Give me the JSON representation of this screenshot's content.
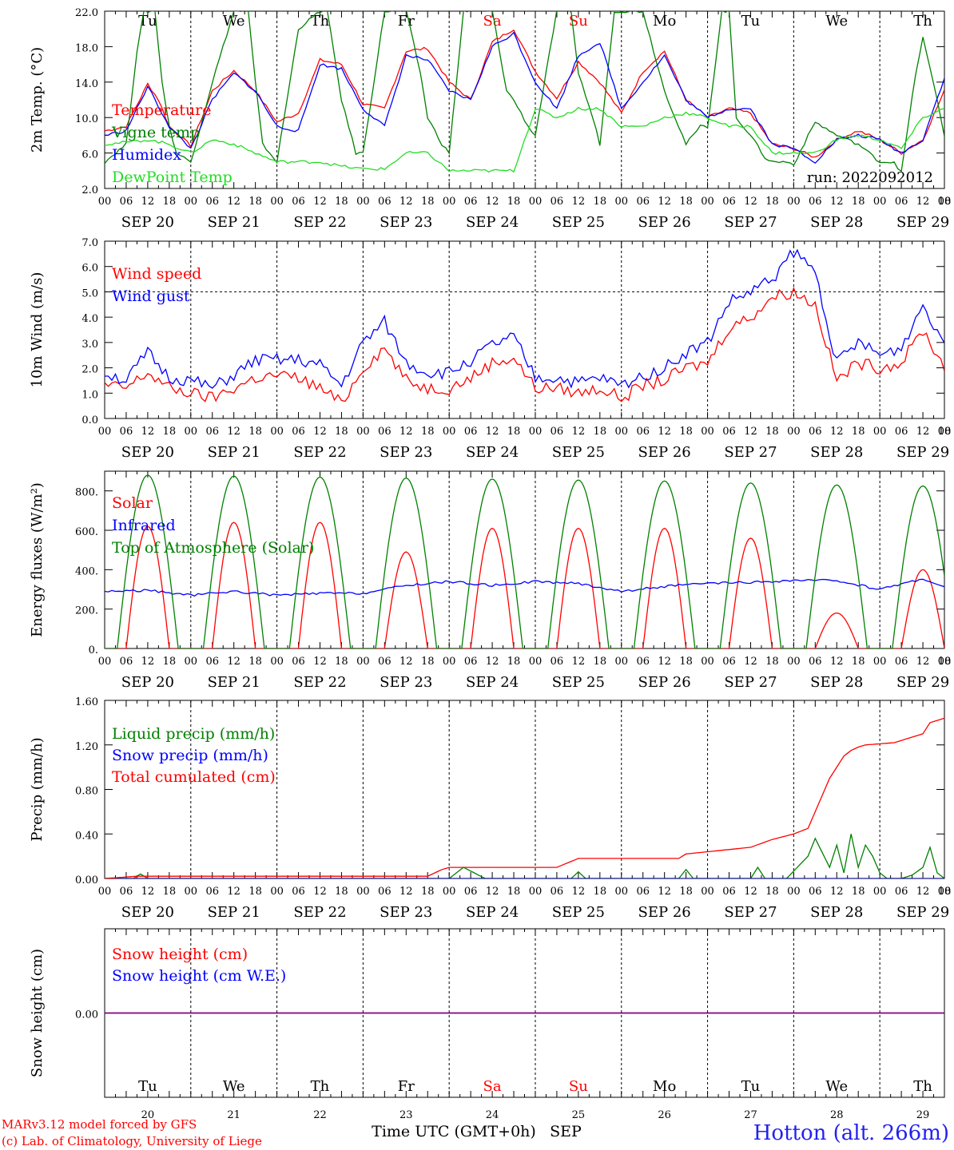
{
  "days": [
    "Tu",
    "We",
    "Th",
    "Fr",
    "Sa",
    "Su",
    "Mo",
    "Tu",
    "We",
    "Th"
  ],
  "day_colors": [
    "#000000",
    "#000000",
    "#000000",
    "#000000",
    "#ff0000",
    "#ff0000",
    "#000000",
    "#000000",
    "#000000",
    "#000000"
  ],
  "dates": [
    "SEP 20",
    "SEP 21",
    "SEP 22",
    "SEP 23",
    "SEP 24",
    "SEP 25",
    "SEP 26",
    "SEP 27",
    "SEP 28",
    "SEP 29"
  ],
  "day_numbers": [
    "20",
    "21",
    "22",
    "23",
    "24",
    "25",
    "26",
    "27",
    "28",
    "29"
  ],
  "hour_ticks": [
    "00",
    "06",
    "12",
    "18"
  ],
  "x_axis_title": "Time UTC (GMT+0h)",
  "x_axis_month": "SEP",
  "run_label": "run: 2022092012",
  "credits": {
    "line1": "MARv3.12 model forced by GFS",
    "line2": "(c) Lab. of Climatology, University of Liege"
  },
  "station": "Hotton (alt. 266m)",
  "colors": {
    "red": "#ff0000",
    "green": "#008000",
    "blue": "#0000ff",
    "lightgreen": "#22dd22",
    "purple": "#800080",
    "station": "#2222ee"
  },
  "chart_data": [
    {
      "type": "line",
      "ylabel": "2m Temp. (°C)",
      "ylim": [
        2.0,
        22.0
      ],
      "yticks": [
        "2.0",
        "6.0",
        "10.0",
        "14.0",
        "18.0",
        "22.0"
      ],
      "show_days": true,
      "x_unit": "hours since SEP 20 00 UTC",
      "series": [
        {
          "name": "Temperature",
          "color": "#ff0000",
          "x": [
            0,
            6,
            12,
            15,
            18,
            24,
            30,
            36,
            42,
            48,
            54,
            60,
            66,
            72,
            78,
            84,
            90,
            96,
            102,
            108,
            114,
            120,
            126,
            132,
            138,
            144,
            150,
            156,
            162,
            168,
            174,
            180,
            186,
            192,
            198,
            204,
            210,
            216,
            222,
            228,
            234
          ],
          "y": [
            8.5,
            9,
            13.8,
            12,
            9,
            6.8,
            13,
            15.3,
            13,
            9.5,
            10.5,
            16.5,
            16,
            11.5,
            11,
            17.5,
            17.8,
            14,
            12,
            18.5,
            20,
            15.2,
            12.2,
            16.3,
            14,
            10.5,
            15.2,
            17.5,
            12,
            10,
            11,
            10.5,
            7,
            6.5,
            5.5,
            7.5,
            8.5,
            7.5,
            6,
            7.5,
            13
          ]
        },
        {
          "name": "Vigne temp",
          "color": "#008000",
          "x": [
            0,
            6,
            9,
            11,
            14,
            16,
            18,
            20,
            24,
            30,
            36,
            40,
            42,
            44,
            48,
            54,
            60,
            62,
            66,
            70,
            72,
            78,
            84,
            88,
            90,
            94,
            96,
            100,
            102,
            108,
            112,
            114,
            118,
            120,
            126,
            130,
            132,
            136,
            138,
            142,
            144,
            150,
            156,
            160,
            162,
            166,
            168,
            172,
            174,
            176,
            180,
            184,
            186,
            190,
            192,
            198,
            204,
            210,
            216,
            220,
            222,
            226,
            228,
            232,
            234
          ],
          "y": [
            5,
            7,
            17.5,
            22,
            22,
            14,
            9,
            6,
            5,
            14,
            22,
            22,
            14,
            7,
            5,
            20,
            22,
            22,
            12,
            6,
            6,
            22,
            22,
            15,
            10,
            7,
            6,
            22,
            22,
            22,
            13,
            12,
            9,
            8,
            22,
            22,
            15,
            10,
            7,
            22,
            22,
            22,
            13,
            9,
            7,
            9,
            9,
            22,
            22,
            10,
            8,
            5.5,
            5,
            5,
            4.7,
            9.5,
            8,
            7,
            5,
            5,
            3.8,
            15,
            19,
            12,
            8
          ]
        },
        {
          "name": "Humidex",
          "color": "#0000ff",
          "x": [
            0,
            6,
            12,
            18,
            24,
            30,
            36,
            42,
            48,
            54,
            60,
            66,
            72,
            78,
            84,
            90,
            96,
            102,
            108,
            114,
            120,
            126,
            132,
            138,
            144,
            150,
            156,
            162,
            168,
            174,
            180,
            186,
            192,
            198,
            204,
            210,
            216,
            222,
            228,
            234
          ],
          "y": [
            8,
            8.5,
            13.5,
            9,
            6.5,
            12,
            15,
            13,
            9,
            8.5,
            16,
            15.5,
            11,
            9,
            17,
            16.5,
            13,
            12,
            18,
            19.5,
            14,
            11,
            17,
            18.5,
            11,
            14,
            17,
            12,
            10,
            11,
            11,
            7,
            6.5,
            5,
            7.5,
            8,
            7.5,
            6,
            7.5,
            14.5
          ]
        },
        {
          "name": "DewPoint Temp",
          "color": "#22dd22",
          "x": [
            0,
            6,
            12,
            18,
            24,
            30,
            36,
            42,
            48,
            54,
            60,
            66,
            72,
            78,
            84,
            90,
            96,
            102,
            108,
            114,
            120,
            126,
            132,
            138,
            144,
            150,
            156,
            162,
            168,
            174,
            180,
            186,
            192,
            198,
            204,
            210,
            216,
            222,
            228,
            234
          ],
          "y": [
            7,
            7.2,
            7.5,
            7,
            6,
            7.5,
            7,
            6,
            5,
            5,
            5,
            4.5,
            4.2,
            4.2,
            6,
            6,
            4,
            4,
            4,
            4,
            11,
            10,
            11,
            11,
            9,
            9,
            10,
            10.5,
            10,
            9,
            9,
            6,
            6,
            6,
            7.5,
            8,
            7.5,
            6.5,
            10,
            11
          ]
        }
      ]
    },
    {
      "type": "line",
      "ylabel": "10m Wind (m/s)",
      "ylim": [
        0.0,
        7.0
      ],
      "yticks": [
        "0.0",
        "1.0",
        "2.0",
        "3.0",
        "4.0",
        "5.0",
        "6.0",
        "7.0"
      ],
      "hline": 5.0,
      "x_unit": "hours since SEP 20 00 UTC",
      "series": [
        {
          "name": "Wind speed",
          "color": "#ff0000",
          "x": [
            0,
            6,
            12,
            18,
            24,
            30,
            36,
            42,
            48,
            54,
            60,
            66,
            72,
            78,
            84,
            90,
            96,
            102,
            108,
            114,
            120,
            126,
            132,
            138,
            144,
            150,
            156,
            162,
            168,
            174,
            180,
            186,
            192,
            198,
            204,
            210,
            216,
            222,
            228,
            234
          ],
          "y": [
            1.3,
            1.2,
            1.8,
            1.2,
            1,
            0.8,
            1.2,
            1.6,
            1.7,
            1.6,
            1.2,
            0.6,
            2,
            2.8,
            1.5,
            1.2,
            1.2,
            1.6,
            2.2,
            2.4,
            1.2,
            1.2,
            1,
            1.2,
            0.8,
            1.3,
            1.5,
            2,
            2.2,
            3.6,
            4,
            4.8,
            5,
            4.5,
            1.5,
            2.2,
            2,
            2.2,
            3.5,
            2
          ]
        },
        {
          "name": "Wind gust",
          "color": "#0000ff",
          "x": [
            0,
            6,
            12,
            18,
            24,
            30,
            36,
            42,
            48,
            54,
            60,
            66,
            72,
            78,
            84,
            90,
            96,
            102,
            108,
            114,
            120,
            126,
            132,
            138,
            144,
            150,
            156,
            162,
            168,
            174,
            180,
            186,
            192,
            198,
            204,
            210,
            216,
            222,
            228,
            234
          ],
          "y": [
            1.8,
            1.5,
            2.6,
            1.6,
            1.5,
            1.2,
            1.7,
            2.3,
            2.3,
            2.3,
            2.1,
            1.3,
            3,
            3.8,
            2.2,
            1.8,
            1.8,
            2.3,
            2.9,
            3.2,
            1.6,
            1.6,
            1.4,
            1.6,
            1.3,
            1.7,
            2,
            2.6,
            3,
            4.6,
            5,
            5.5,
            6.6,
            5.8,
            2.2,
            3,
            2.5,
            2.8,
            4.5,
            3
          ]
        }
      ]
    },
    {
      "type": "line",
      "ylabel": "Energy fluxes (W/m²)",
      "ylim": [
        0,
        900
      ],
      "yticks": [
        "0.",
        "200.",
        "400.",
        "600.",
        "800."
      ],
      "x_unit": "hours since SEP 20 00 UTC",
      "series": [
        {
          "name": "Solar",
          "color": "#ff0000",
          "daily_peaks": [
            620,
            640,
            640,
            490,
            610,
            610,
            610,
            560,
            180,
            400
          ]
        },
        {
          "name": "Infrared",
          "color": "#0000ff",
          "x": [
            0,
            12,
            24,
            36,
            48,
            60,
            72,
            84,
            96,
            108,
            120,
            132,
            144,
            156,
            168,
            180,
            192,
            204,
            216,
            228,
            234
          ],
          "y": [
            290,
            295,
            270,
            290,
            270,
            280,
            280,
            320,
            340,
            320,
            340,
            330,
            290,
            315,
            330,
            335,
            345,
            345,
            300,
            355,
            310
          ]
        },
        {
          "name": "Top of Atmosphere (Solar)",
          "color": "#008000",
          "daily_peaks": [
            880,
            875,
            870,
            865,
            860,
            855,
            850,
            840,
            830,
            825
          ]
        }
      ]
    },
    {
      "type": "line",
      "ylabel": "Precip (mm/h)",
      "ylim": [
        0.0,
        1.6
      ],
      "yticks": [
        "0.00",
        "0.40",
        "0.80",
        "1.20",
        "1.60"
      ],
      "x_unit": "hours since SEP 20 00 UTC",
      "series": [
        {
          "name": "Liquid precip (mm/h)",
          "color": "#008000",
          "x": [
            0,
            8,
            10,
            12,
            90,
            96,
            100,
            106,
            108,
            130,
            132,
            134,
            140,
            160,
            162,
            164,
            180,
            182,
            184,
            190,
            196,
            198,
            202,
            204,
            206,
            208,
            210,
            212,
            214,
            216,
            218,
            222,
            225,
            228,
            230,
            232,
            234
          ],
          "y": [
            0,
            0,
            0.04,
            0,
            0,
            0,
            0.1,
            0,
            0,
            0,
            0.06,
            0,
            0,
            0,
            0.08,
            0,
            0,
            0.1,
            0,
            0,
            0.2,
            0.36,
            0.1,
            0.3,
            0.05,
            0.4,
            0.1,
            0.3,
            0.2,
            0.05,
            0,
            0,
            0.03,
            0.1,
            0.28,
            0.05,
            0
          ]
        },
        {
          "name": "Snow precip (mm/h)",
          "color": "#0000ff",
          "x": [
            0,
            234
          ],
          "y": [
            0,
            0
          ]
        },
        {
          "name": "Total cumulated (cm)",
          "color": "#ff0000",
          "x": [
            0,
            9,
            90,
            94,
            96,
            126,
            132,
            138,
            140,
            160,
            162,
            180,
            186,
            192,
            196,
            198,
            200,
            202,
            204,
            206,
            208,
            210,
            212,
            220,
            228,
            230,
            234
          ],
          "y": [
            0,
            0.02,
            0.02,
            0.08,
            0.1,
            0.1,
            0.18,
            0.18,
            0.18,
            0.18,
            0.22,
            0.28,
            0.35,
            0.4,
            0.45,
            0.6,
            0.75,
            0.9,
            1.0,
            1.1,
            1.15,
            1.18,
            1.2,
            1.22,
            1.3,
            1.4,
            1.44
          ]
        }
      ]
    },
    {
      "type": "line",
      "ylabel": "Snow height (cm)",
      "ylim": [
        -1,
        1
      ],
      "yticks": [
        "0.00"
      ],
      "x_unit": "hours since SEP 20 00 UTC",
      "series": [
        {
          "name": "Snow height (cm)",
          "color": "#ff0000",
          "x": [
            0,
            234
          ],
          "y": [
            0,
            0
          ]
        },
        {
          "name": "Snow height (cm W.E.)",
          "color": "#0000ff",
          "x": [
            0,
            234
          ],
          "y": [
            0,
            0
          ]
        }
      ]
    }
  ]
}
